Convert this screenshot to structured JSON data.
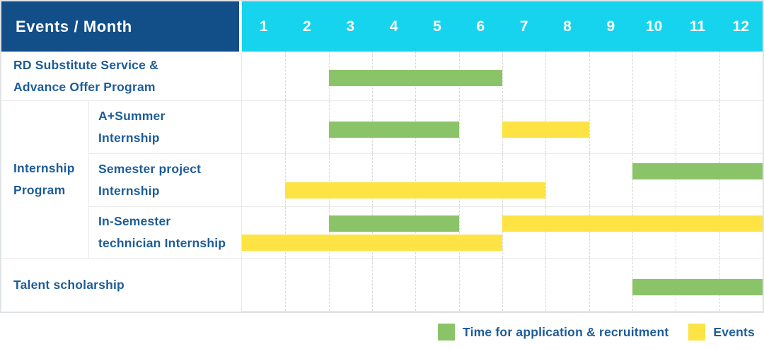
{
  "header": {
    "title": "Events / Month"
  },
  "colors": {
    "header_bg": "#124e87",
    "month_bar_bg": "#16d4ee",
    "label_text": "#1d5c99",
    "grid_line": "#d8d8d8",
    "row_border": "#e9e9e9",
    "application_green": "#8bc468",
    "event_yellow": "#fde344"
  },
  "chart_data": {
    "type": "bar",
    "variant": "gantt",
    "title": "Events / Month",
    "xlabel": "Month",
    "x_ticks": [
      "1",
      "2",
      "3",
      "4",
      "5",
      "6",
      "7",
      "8",
      "9",
      "10",
      "11",
      "12"
    ],
    "x_range": [
      1,
      12
    ],
    "grid": true,
    "legend_position": "bottom-right",
    "series": [
      {
        "id": "application",
        "label": "Time for application & recruitment",
        "color": "#8bc468"
      },
      {
        "id": "event",
        "label": "Events",
        "color": "#fde344"
      }
    ],
    "rows": [
      {
        "group": "",
        "label": "RD Substitute Service & Advance Offer Program",
        "label_lines": [
          "RD Substitute Service &",
          "Advance Offer Program"
        ],
        "lines": [
          [
            {
              "series": "application",
              "start_month": 3,
              "end_month": 6
            }
          ]
        ]
      },
      {
        "group": "Internship Program",
        "label": "A+Summer Internship",
        "label_lines": [
          "A+Summer",
          "Internship"
        ],
        "lines": [
          [
            {
              "series": "application",
              "start_month": 3,
              "end_month": 5
            },
            {
              "series": "event",
              "start_month": 7,
              "end_month": 8
            }
          ]
        ]
      },
      {
        "group": "Internship Program",
        "label": "Semester project Internship",
        "label_lines": [
          "Semester project",
          "Internship"
        ],
        "lines": [
          [
            {
              "series": "application",
              "start_month": 10,
              "end_month": 12
            }
          ],
          [
            {
              "series": "event",
              "start_month": 2,
              "end_month": 7
            }
          ]
        ]
      },
      {
        "group": "Internship Program",
        "label": "In-Semester technician Internship",
        "label_lines": [
          "In-Semester",
          "technician Internship"
        ],
        "lines": [
          [
            {
              "series": "application",
              "start_month": 3,
              "end_month": 5
            },
            {
              "series": "event",
              "start_month": 7,
              "end_month": 12
            }
          ],
          [
            {
              "series": "event",
              "start_month": 1,
              "end_month": 6
            }
          ]
        ]
      },
      {
        "group": "",
        "label": "Talent scholarship",
        "label_lines": [
          "Talent scholarship"
        ],
        "lines": [
          [
            {
              "series": "application",
              "start_month": 10,
              "end_month": 12
            }
          ]
        ]
      }
    ],
    "group_label_lines": [
      "Internship",
      "Program"
    ]
  },
  "legend": {
    "items": [
      {
        "label": "Time for application & recruitment"
      },
      {
        "label": "Events"
      }
    ]
  }
}
